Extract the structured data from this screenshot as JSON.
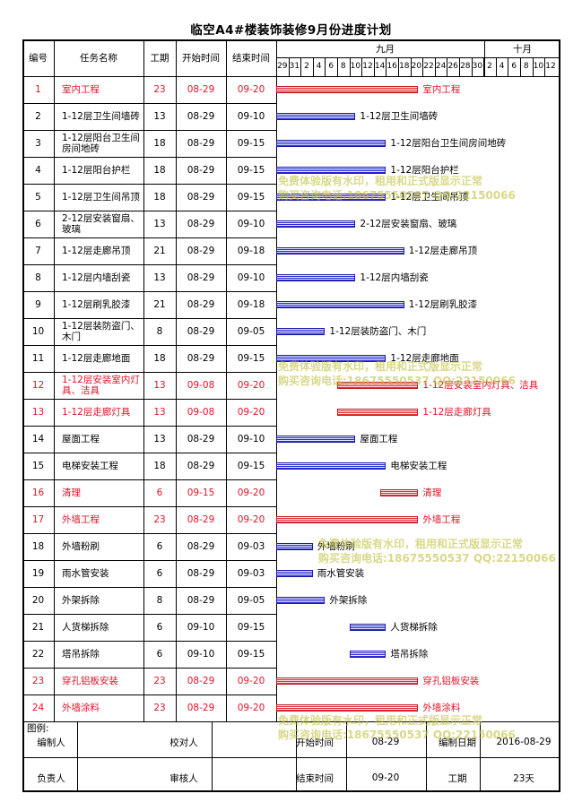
{
  "title": "临空A4#楼装饰装修9月份进度计划",
  "headers": {
    "id": "编号",
    "name": "任务名称",
    "duration": "工期",
    "start": "开始时间",
    "end": "结束时间",
    "month1": "九月",
    "month2": "十月"
  },
  "day_ticks": [
    "29",
    "31",
    "2",
    "4",
    "6",
    "8",
    "10",
    "12",
    "14",
    "16",
    "18",
    "20",
    "22",
    "24",
    "26",
    "28",
    "30",
    "2",
    "4",
    "6",
    "8",
    "10",
    "12"
  ],
  "tasks": [
    {
      "id": "1",
      "name": "室内工程",
      "duration": "23",
      "start": "08-29",
      "end": "09-20",
      "summary": true,
      "label": "室内工程",
      "s": 0,
      "e": 23
    },
    {
      "id": "2",
      "name": "1-12层卫生间墙砖",
      "duration": "13",
      "start": "08-29",
      "end": "09-10",
      "summary": false,
      "label": "1-12层卫生间墙砖",
      "s": 0,
      "e": 13
    },
    {
      "id": "3",
      "name": "1-12层阳台卫生间房间地砖",
      "duration": "18",
      "start": "08-29",
      "end": "09-15",
      "summary": false,
      "label": "1-12层阳台卫生间房间地砖",
      "s": 0,
      "e": 18
    },
    {
      "id": "4",
      "name": "1-12层阳台护栏",
      "duration": "18",
      "start": "08-29",
      "end": "09-15",
      "summary": false,
      "label": "1-12层阳台护栏",
      "s": 0,
      "e": 18
    },
    {
      "id": "5",
      "name": "1-12层卫生间吊顶",
      "duration": "18",
      "start": "08-29",
      "end": "09-15",
      "summary": false,
      "label": "1-12层卫生间吊顶",
      "s": 0,
      "e": 18
    },
    {
      "id": "6",
      "name": "2-12层安装窗扇、玻璃",
      "duration": "13",
      "start": "08-29",
      "end": "09-10",
      "summary": false,
      "label": "2-12层安装窗扇、玻璃",
      "s": 0,
      "e": 13
    },
    {
      "id": "7",
      "name": "1-12层走廊吊顶",
      "duration": "21",
      "start": "08-29",
      "end": "09-18",
      "summary": false,
      "label": "1-12层走廊吊顶",
      "s": 0,
      "e": 21
    },
    {
      "id": "8",
      "name": "1-12层内墙刮瓷",
      "duration": "13",
      "start": "08-29",
      "end": "09-10",
      "summary": false,
      "label": "1-12层内墙刮瓷",
      "s": 0,
      "e": 13
    },
    {
      "id": "9",
      "name": "1-12层刷乳胶漆",
      "duration": "21",
      "start": "08-29",
      "end": "09-18",
      "summary": false,
      "label": "1-12层刷乳胶漆",
      "s": 0,
      "e": 21
    },
    {
      "id": "10",
      "name": "1-12层装防盗门、木门",
      "duration": "8",
      "start": "08-29",
      "end": "09-05",
      "summary": false,
      "label": "1-12层装防盗门、木门",
      "s": 0,
      "e": 8
    },
    {
      "id": "11",
      "name": "1-12层走廊地面",
      "duration": "18",
      "start": "08-29",
      "end": "09-15",
      "summary": false,
      "label": "1-12层走廊地面",
      "s": 0,
      "e": 18
    },
    {
      "id": "12",
      "name": "1-12层安装室内灯具、洁具",
      "duration": "13",
      "start": "09-08",
      "end": "09-20",
      "summary": true,
      "label": "1-12层安装室内灯具、洁具",
      "s": 10,
      "e": 23
    },
    {
      "id": "13",
      "name": "1-12层走廊灯具",
      "duration": "13",
      "start": "09-08",
      "end": "09-20",
      "summary": true,
      "label": "1-12层走廊灯具",
      "s": 10,
      "e": 23
    },
    {
      "id": "14",
      "name": "屋面工程",
      "duration": "13",
      "start": "08-29",
      "end": "09-10",
      "summary": false,
      "label": "屋面工程",
      "s": 0,
      "e": 13
    },
    {
      "id": "15",
      "name": "电梯安装工程",
      "duration": "18",
      "start": "08-29",
      "end": "09-15",
      "summary": false,
      "label": "电梯安装工程",
      "s": 0,
      "e": 18
    },
    {
      "id": "16",
      "name": "清理",
      "duration": "6",
      "start": "09-15",
      "end": "09-20",
      "summary": true,
      "label": "清理",
      "s": 17,
      "e": 23
    },
    {
      "id": "17",
      "name": "外墙工程",
      "duration": "23",
      "start": "08-29",
      "end": "09-20",
      "summary": true,
      "label": "外墙工程",
      "s": 0,
      "e": 23
    },
    {
      "id": "18",
      "name": "外墙粉刷",
      "duration": "6",
      "start": "08-29",
      "end": "09-03",
      "summary": false,
      "label": "外墙粉刷",
      "s": 0,
      "e": 6
    },
    {
      "id": "19",
      "name": "雨水管安装",
      "duration": "6",
      "start": "08-29",
      "end": "09-03",
      "summary": false,
      "label": "雨水管安装",
      "s": 0,
      "e": 6
    },
    {
      "id": "20",
      "name": "外架拆除",
      "duration": "8",
      "start": "08-29",
      "end": "09-05",
      "summary": false,
      "label": "外架拆除",
      "s": 0,
      "e": 8
    },
    {
      "id": "21",
      "name": "人货梯拆除",
      "duration": "6",
      "start": "09-10",
      "end": "09-15",
      "summary": false,
      "label": "人货梯拆除",
      "s": 12,
      "e": 18
    },
    {
      "id": "22",
      "name": "塔吊拆除",
      "duration": "6",
      "start": "09-10",
      "end": "09-15",
      "summary": false,
      "label": "塔吊拆除",
      "s": 12,
      "e": 18
    },
    {
      "id": "23",
      "name": "穿孔铝板安装",
      "duration": "23",
      "start": "08-29",
      "end": "09-20",
      "summary": true,
      "label": "穿孔铝板安装",
      "s": 0,
      "e": 23
    },
    {
      "id": "24",
      "name": "外墙涂料",
      "duration": "23",
      "start": "08-29",
      "end": "09-20",
      "summary": true,
      "label": "外墙涂料",
      "s": 0,
      "e": 23
    }
  ],
  "footer": {
    "legend_label": "图例:",
    "editor_label": "编制人",
    "checker_label": "校对人",
    "start_label": "开始时间",
    "start_value": "08-29",
    "date_label": "编制日期",
    "date_value": "2016-08-29",
    "owner_label": "负责人",
    "reviewer_label": "审核人",
    "end_label": "结束时间",
    "end_value": "09-20",
    "duration_label": "工期",
    "duration_value": "23天"
  },
  "watermark": {
    "line1": "免费体验版有水印，租用和正式版显示正常",
    "line2": "购买咨询电话:18675550537 QQ:22150066"
  },
  "colors": {
    "summary": "#e0142a",
    "task_bar": "#2a2ad0",
    "summary_bar": "#e0303a"
  }
}
